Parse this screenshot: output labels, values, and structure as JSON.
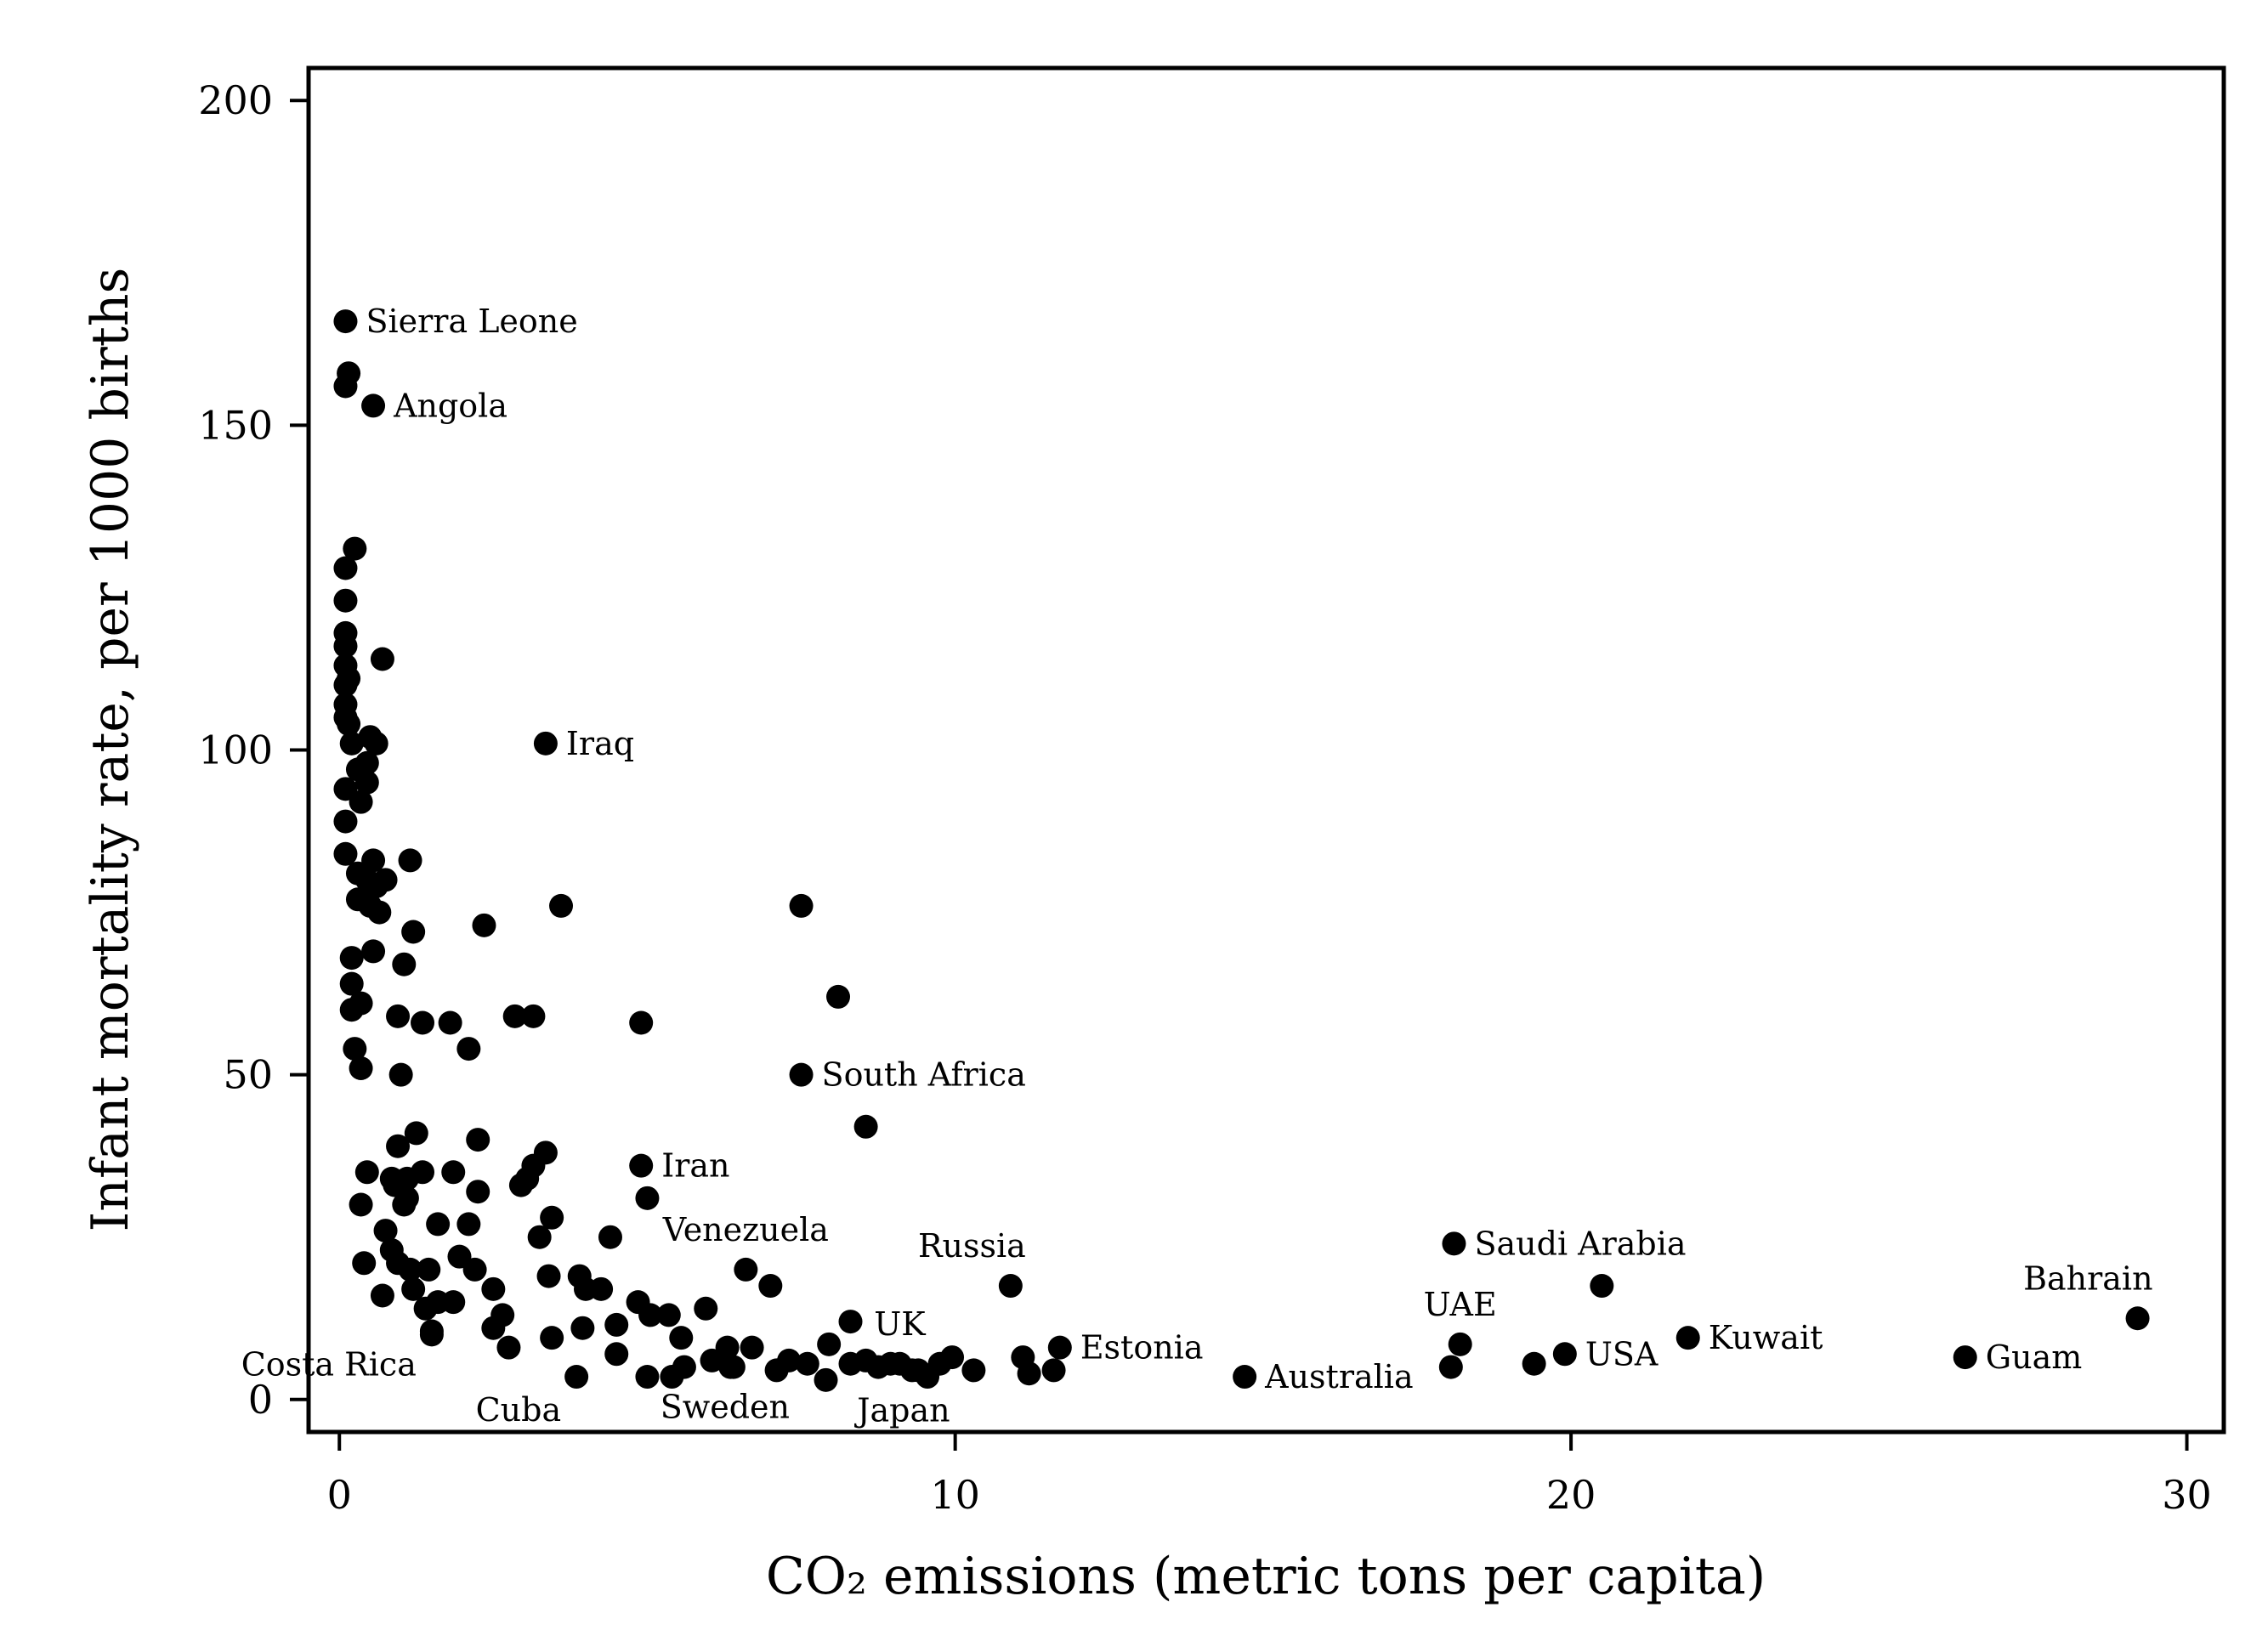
{
  "chart_data": {
    "type": "scatter",
    "title": "",
    "xlabel": "CO₂ emissions (metric tons per capita)",
    "ylabel": "Infant mortality rate, per 1000 births",
    "xlim": [
      -0.5,
      30.6
    ],
    "ylim": [
      -5,
      205
    ],
    "x_ticks": [
      0,
      10,
      20,
      30
    ],
    "y_ticks": [
      0,
      50,
      100,
      150,
      200
    ],
    "x_tick_labels": [
      "0",
      "10",
      "20",
      "30"
    ],
    "y_tick_labels": [
      "0",
      "50",
      "100",
      "150",
      "200"
    ],
    "grid": false,
    "legend": "none",
    "marker_color": "#000000",
    "labeled_points": [
      {
        "label": "Sierra Leone",
        "x": 0.1,
        "y": 166,
        "side": "right"
      },
      {
        "label": "Angola",
        "x": 0.55,
        "y": 153,
        "side": "right"
      },
      {
        "label": "Iraq",
        "x": 3.35,
        "y": 101,
        "side": "right"
      },
      {
        "label": "South Africa",
        "x": 7.5,
        "y": 50,
        "side": "right"
      },
      {
        "label": "Iran",
        "x": 4.9,
        "y": 36,
        "side": "right"
      },
      {
        "label": "Venezuela",
        "x": 6.6,
        "y": 20,
        "side": "above"
      },
      {
        "label": "Russia",
        "x": 10.9,
        "y": 17.5,
        "side": "above-left"
      },
      {
        "label": "Saudi Arabia",
        "x": 18.1,
        "y": 24,
        "side": "right"
      },
      {
        "label": "Bahrain",
        "x": 29.2,
        "y": 12.5,
        "side": "above-left"
      },
      {
        "label": "UAE",
        "x": 18.2,
        "y": 8.5,
        "side": "above"
      },
      {
        "label": "USA",
        "x": 19.9,
        "y": 7,
        "side": "right"
      },
      {
        "label": "Kuwait",
        "x": 21.9,
        "y": 9.5,
        "side": "right"
      },
      {
        "label": "Guam",
        "x": 26.4,
        "y": 6.5,
        "side": "right"
      },
      {
        "label": "Estonia",
        "x": 11.7,
        "y": 8,
        "side": "right"
      },
      {
        "label": "Australia",
        "x": 14.7,
        "y": 3.5,
        "side": "right"
      },
      {
        "label": "UK",
        "x": 9.1,
        "y": 5.5,
        "side": "above"
      },
      {
        "label": "Japan",
        "x": 9.3,
        "y": 4.5,
        "side": "below"
      },
      {
        "label": "Sweden",
        "x": 6.4,
        "y": 5,
        "side": "below"
      },
      {
        "label": "Cuba",
        "x": 3.85,
        "y": 3.5,
        "side": "below-left"
      },
      {
        "label": "Costa Rica",
        "x": 1.5,
        "y": 10.5,
        "side": "below-left"
      }
    ],
    "points": [
      [
        0.15,
        158
      ],
      [
        0.1,
        156
      ],
      [
        0.25,
        131
      ],
      [
        0.1,
        128
      ],
      [
        0.1,
        123
      ],
      [
        0.1,
        118
      ],
      [
        0.1,
        116
      ],
      [
        0.1,
        113
      ],
      [
        0.1,
        110
      ],
      [
        0.15,
        111
      ],
      [
        0.1,
        107
      ],
      [
        0.1,
        105
      ],
      [
        0.15,
        104
      ],
      [
        0.2,
        101
      ],
      [
        0.7,
        114
      ],
      [
        0.5,
        102
      ],
      [
        0.6,
        101
      ],
      [
        0.45,
        98
      ],
      [
        0.3,
        97
      ],
      [
        0.1,
        94
      ],
      [
        0.35,
        92
      ],
      [
        0.45,
        95
      ],
      [
        0.1,
        89
      ],
      [
        0.1,
        84
      ],
      [
        0.3,
        81
      ],
      [
        0.45,
        80
      ],
      [
        0.55,
        83
      ],
      [
        0.6,
        79
      ],
      [
        0.75,
        80
      ],
      [
        0.3,
        77
      ],
      [
        0.5,
        76
      ],
      [
        0.65,
        75
      ],
      [
        1.15,
        83
      ],
      [
        0.2,
        68
      ],
      [
        0.55,
        69
      ],
      [
        1.2,
        72
      ],
      [
        2.35,
        73
      ],
      [
        0.2,
        64
      ],
      [
        0.35,
        61
      ],
      [
        1.05,
        67
      ],
      [
        0.2,
        60
      ],
      [
        0.95,
        59
      ],
      [
        1.35,
        58
      ],
      [
        1.8,
        58
      ],
      [
        2.1,
        54
      ],
      [
        2.85,
        59
      ],
      [
        3.15,
        59
      ],
      [
        4.9,
        58
      ],
      [
        3.6,
        76
      ],
      [
        7.5,
        76
      ],
      [
        8.1,
        62
      ],
      [
        0.25,
        54
      ],
      [
        0.35,
        51
      ],
      [
        1.0,
        50
      ],
      [
        8.55,
        42
      ],
      [
        1.25,
        41
      ],
      [
        2.25,
        40
      ],
      [
        0.95,
        39
      ],
      [
        3.35,
        38
      ],
      [
        0.45,
        35
      ],
      [
        0.85,
        34
      ],
      [
        1.1,
        34
      ],
      [
        1.35,
        35
      ],
      [
        1.85,
        35
      ],
      [
        3.05,
        34
      ],
      [
        3.15,
        36
      ],
      [
        0.9,
        33
      ],
      [
        1.1,
        31
      ],
      [
        1.05,
        30
      ],
      [
        0.35,
        30
      ],
      [
        2.25,
        32
      ],
      [
        2.95,
        33
      ],
      [
        5.0,
        31
      ],
      [
        1.6,
        27
      ],
      [
        2.1,
        27
      ],
      [
        3.45,
        28
      ],
      [
        0.75,
        26
      ],
      [
        4.4,
        25
      ],
      [
        3.25,
        25
      ],
      [
        0.85,
        23
      ],
      [
        0.4,
        21
      ],
      [
        0.95,
        21
      ],
      [
        1.15,
        20
      ],
      [
        1.45,
        20
      ],
      [
        1.95,
        22
      ],
      [
        2.2,
        20
      ],
      [
        3.4,
        19
      ],
      [
        3.9,
        19
      ],
      [
        4.25,
        17
      ],
      [
        4.0,
        17
      ],
      [
        2.5,
        17
      ],
      [
        0.7,
        16
      ],
      [
        1.2,
        17
      ],
      [
        1.6,
        15
      ],
      [
        1.4,
        14
      ],
      [
        1.85,
        15
      ],
      [
        2.65,
        13
      ],
      [
        4.85,
        15
      ],
      [
        5.05,
        13
      ],
      [
        5.35,
        13
      ],
      [
        5.95,
        14
      ],
      [
        3.95,
        11
      ],
      [
        2.5,
        11
      ],
      [
        1.5,
        10
      ],
      [
        4.5,
        11.5
      ],
      [
        3.45,
        9.5
      ],
      [
        5.55,
        9.5
      ],
      [
        2.75,
        8
      ],
      [
        4.5,
        7
      ],
      [
        6.3,
        8
      ],
      [
        6.7,
        8
      ],
      [
        7.0,
        17.5
      ],
      [
        5.0,
        3.5
      ],
      [
        5.4,
        3.5
      ],
      [
        5.6,
        5
      ],
      [
        6.05,
        6
      ],
      [
        6.35,
        5
      ],
      [
        7.1,
        4.5
      ],
      [
        7.3,
        6
      ],
      [
        7.6,
        5.5
      ],
      [
        7.9,
        3
      ],
      [
        7.95,
        8.5
      ],
      [
        8.3,
        5.5
      ],
      [
        8.55,
        6
      ],
      [
        8.75,
        5
      ],
      [
        8.95,
        5.5
      ],
      [
        9.4,
        4.5
      ],
      [
        9.75,
        5.5
      ],
      [
        9.95,
        6.5
      ],
      [
        9.55,
        3.5
      ],
      [
        10.3,
        4.5
      ],
      [
        11.1,
        6.5
      ],
      [
        11.2,
        4
      ],
      [
        11.6,
        4.5
      ],
      [
        8.3,
        12
      ],
      [
        18.05,
        5
      ],
      [
        19.4,
        5.5
      ],
      [
        20.5,
        17.5
      ]
    ]
  }
}
